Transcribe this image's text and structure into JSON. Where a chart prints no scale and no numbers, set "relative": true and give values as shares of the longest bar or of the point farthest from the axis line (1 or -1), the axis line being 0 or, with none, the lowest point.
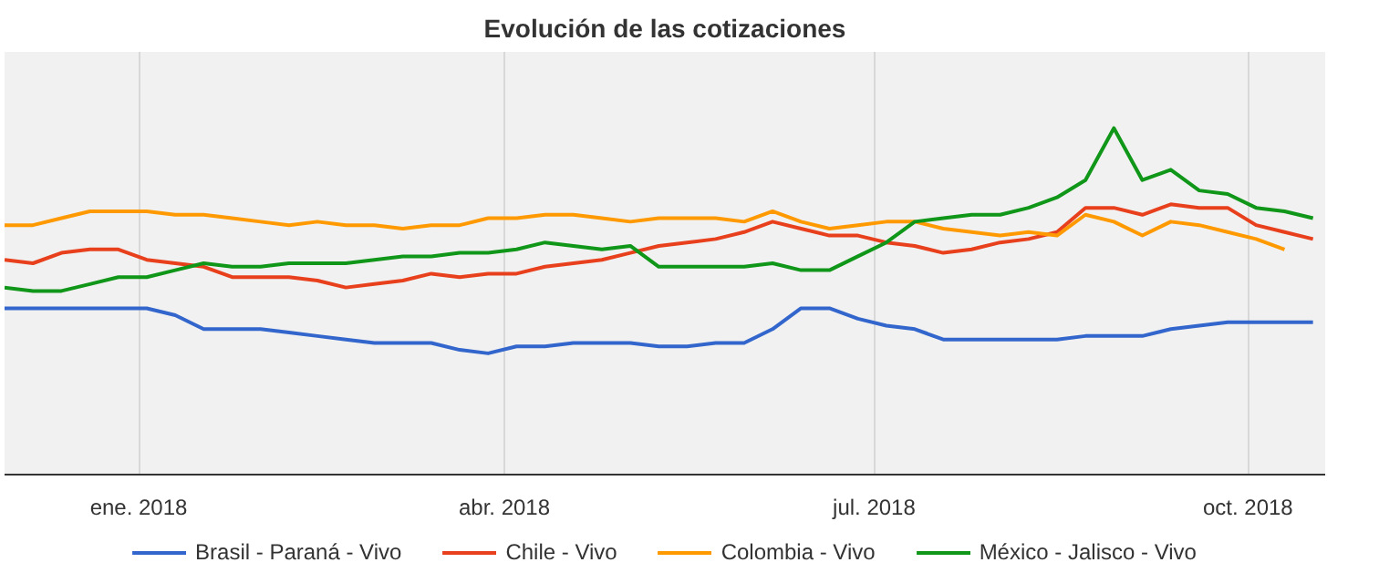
{
  "chart_data": {
    "type": "line",
    "title": "Evolución de las cotizaciones",
    "relative": true,
    "x": [
      "2017-11-29",
      "2017-12-06",
      "2017-12-13",
      "2017-12-20",
      "2017-12-27",
      "2018-01-03",
      "2018-01-10",
      "2018-01-17",
      "2018-01-24",
      "2018-01-31",
      "2018-02-07",
      "2018-02-14",
      "2018-02-21",
      "2018-02-28",
      "2018-03-07",
      "2018-03-14",
      "2018-03-21",
      "2018-03-28",
      "2018-04-04",
      "2018-04-11",
      "2018-04-18",
      "2018-04-25",
      "2018-05-02",
      "2018-05-09",
      "2018-05-16",
      "2018-05-23",
      "2018-05-30",
      "2018-06-06",
      "2018-06-13",
      "2018-06-20",
      "2018-06-27",
      "2018-07-04",
      "2018-07-11",
      "2018-07-18",
      "2018-07-25",
      "2018-08-01",
      "2018-08-08",
      "2018-08-15",
      "2018-08-22",
      "2018-08-29",
      "2018-09-05",
      "2018-09-12",
      "2018-09-19",
      "2018-09-26",
      "2018-10-03",
      "2018-10-10",
      "2018-10-17"
    ],
    "xlim": [
      "2017-11-29",
      "2018-10-20"
    ],
    "xticks": [
      {
        "value": "2018-01-01",
        "label": "ene. 2018"
      },
      {
        "value": "2018-04-01",
        "label": "abr. 2018"
      },
      {
        "value": "2018-07-01",
        "label": "jul. 2018"
      },
      {
        "value": "2018-10-01",
        "label": "oct. 2018"
      }
    ],
    "grid": "x",
    "legend": "bottom",
    "line_style": "solid",
    "series": [
      {
        "name": "Brasil - Paraná - Vivo",
        "color": "#3366cc",
        "values": [
          0.48,
          0.48,
          0.48,
          0.48,
          0.48,
          0.48,
          0.46,
          0.42,
          0.42,
          0.42,
          0.41,
          0.4,
          0.39,
          0.38,
          0.38,
          0.38,
          0.36,
          0.35,
          0.37,
          0.37,
          0.38,
          0.38,
          0.38,
          0.37,
          0.37,
          0.38,
          0.38,
          0.42,
          0.48,
          0.48,
          0.45,
          0.43,
          0.42,
          0.39,
          0.39,
          0.39,
          0.39,
          0.39,
          0.4,
          0.4,
          0.4,
          0.42,
          0.43,
          0.44,
          0.44,
          0.44,
          0.44
        ]
      },
      {
        "name": "Chile - Vivo",
        "color": "#e8401c",
        "values": [
          0.62,
          0.61,
          0.64,
          0.65,
          0.65,
          0.62,
          0.61,
          0.6,
          0.57,
          0.57,
          0.57,
          0.56,
          0.54,
          0.55,
          0.56,
          0.58,
          0.57,
          0.58,
          0.58,
          0.6,
          0.61,
          0.62,
          0.64,
          0.66,
          0.67,
          0.68,
          0.7,
          0.73,
          0.71,
          0.69,
          0.69,
          0.67,
          0.66,
          0.64,
          0.65,
          0.67,
          0.68,
          0.7,
          0.77,
          0.77,
          0.75,
          0.78,
          0.77,
          0.77,
          0.72,
          0.7,
          0.68
        ]
      },
      {
        "name": "Colombia - Vivo",
        "color": "#ff9900",
        "values": [
          0.72,
          0.72,
          0.74,
          0.76,
          0.76,
          0.76,
          0.75,
          0.75,
          0.74,
          0.73,
          0.72,
          0.73,
          0.72,
          0.72,
          0.71,
          0.72,
          0.72,
          0.74,
          0.74,
          0.75,
          0.75,
          0.74,
          0.73,
          0.74,
          0.74,
          0.74,
          0.73,
          0.76,
          0.73,
          0.71,
          0.72,
          0.73,
          0.73,
          0.71,
          0.7,
          0.69,
          0.7,
          0.69,
          0.75,
          0.73,
          0.69,
          0.73,
          0.72,
          0.7,
          0.68,
          0.65,
          null
        ]
      },
      {
        "name": "México - Jalisco - Vivo",
        "color": "#109618",
        "values": [
          0.54,
          0.53,
          0.53,
          0.55,
          0.57,
          0.57,
          0.59,
          0.61,
          0.6,
          0.6,
          0.61,
          0.61,
          0.61,
          0.62,
          0.63,
          0.63,
          0.64,
          0.64,
          0.65,
          0.67,
          0.66,
          0.65,
          0.66,
          0.6,
          0.6,
          0.6,
          0.6,
          0.61,
          0.59,
          0.59,
          0.63,
          0.67,
          0.73,
          0.74,
          0.75,
          0.75,
          0.77,
          0.8,
          0.85,
          1.0,
          0.85,
          0.88,
          0.82,
          0.81,
          0.77,
          0.76,
          0.74
        ]
      }
    ]
  }
}
